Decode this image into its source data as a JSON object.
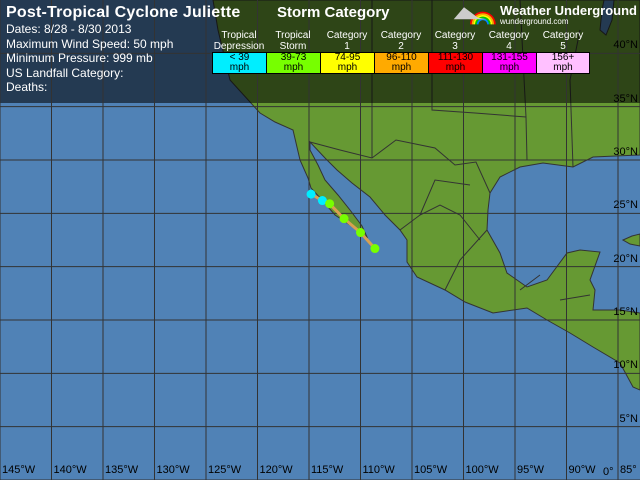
{
  "storm": {
    "title": "Post-Tropical Cyclone Juliette",
    "dates": "Dates: 8/28 - 8/30 2013",
    "max_wind": "Maximum Wind Speed: 50 mph",
    "min_pressure": "Minimum Pressure: 999 mb",
    "us_landfall": "US Landfall Category:",
    "deaths": "Deaths:"
  },
  "legend": {
    "title": "Storm Category",
    "categories": [
      {
        "l1": "Tropical",
        "l2": "Depression",
        "range": "< 39",
        "unit": "mph",
        "color": "#00eeff"
      },
      {
        "l1": "Tropical",
        "l2": "Storm",
        "range": "39-73",
        "unit": "mph",
        "color": "#77ff00"
      },
      {
        "l1": "Category",
        "l2": "1",
        "range": "74-95",
        "unit": "mph",
        "color": "#ffff00"
      },
      {
        "l1": "Category",
        "l2": "2",
        "range": "96-110",
        "unit": "mph",
        "color": "#ffaa00"
      },
      {
        "l1": "Category",
        "l2": "3",
        "range": "111-130",
        "unit": "mph",
        "color": "#ff0000"
      },
      {
        "l1": "Category",
        "l2": "4",
        "range": "131-155",
        "unit": "mph",
        "color": "#ff00ff"
      },
      {
        "l1": "Category",
        "l2": "5",
        "range": "156+",
        "unit": "mph",
        "color": "#ffc0ff"
      }
    ]
  },
  "logo": {
    "name": "Weather Underground",
    "url": "wunderground.com"
  },
  "map": {
    "ocean_color": "#5082b6",
    "land_color": "#669933",
    "track_color": "#d9a050",
    "lon_labels": [
      "145°W",
      "140°W",
      "135°W",
      "130°W",
      "125°W",
      "120°W",
      "115°W",
      "110°W",
      "105°W",
      "100°W",
      "95°W",
      "90°W",
      "85°"
    ],
    "lat_labels": [
      "0°",
      "5°N",
      "10°N",
      "15°N",
      "20°N",
      "25°N",
      "30°N",
      "35°N",
      "40°N"
    ],
    "track": [
      {
        "lon": -114.8,
        "lat": 26.8,
        "category": "Tropical Depression"
      },
      {
        "lon": -113.7,
        "lat": 26.2,
        "category": "Tropical Depression"
      },
      {
        "lon": -113.0,
        "lat": 25.9,
        "category": "Tropical Storm"
      },
      {
        "lon": -111.6,
        "lat": 24.5,
        "category": "Tropical Storm"
      },
      {
        "lon": -110.0,
        "lat": 23.2,
        "category": "Tropical Storm"
      },
      {
        "lon": -108.6,
        "lat": 21.7,
        "category": "Tropical Storm"
      }
    ]
  }
}
